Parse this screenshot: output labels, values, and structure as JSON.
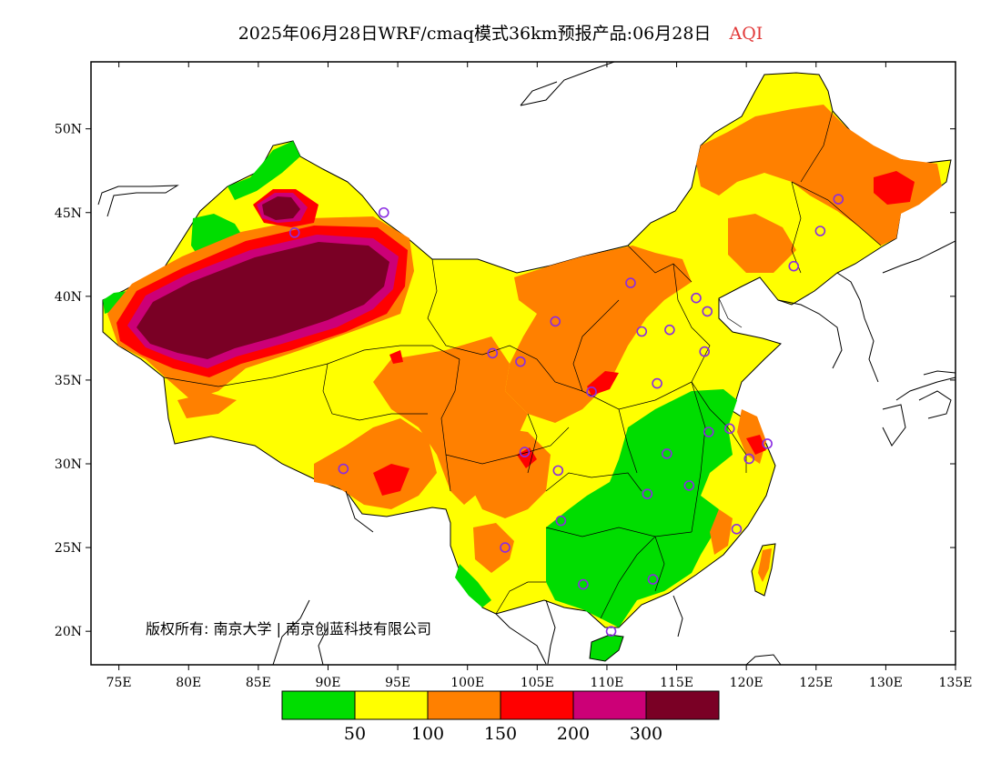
{
  "title": {
    "main": "2025年06月28日WRF/cmaq模式36km预报产品:06月28日",
    "variable": "AQI",
    "variable_color": "#e23a3a"
  },
  "map": {
    "lon_range": [
      73,
      135
    ],
    "lat_range": [
      18,
      54
    ],
    "x_ticks": [
      {
        "value": 75,
        "label": "75E"
      },
      {
        "value": 80,
        "label": "80E"
      },
      {
        "value": 85,
        "label": "85E"
      },
      {
        "value": 90,
        "label": "90E"
      },
      {
        "value": 95,
        "label": "95E"
      },
      {
        "value": 100,
        "label": "100E"
      },
      {
        "value": 105,
        "label": "105E"
      },
      {
        "value": 110,
        "label": "110E"
      },
      {
        "value": 115,
        "label": "115E"
      },
      {
        "value": 120,
        "label": "120E"
      },
      {
        "value": 125,
        "label": "125E"
      },
      {
        "value": 130,
        "label": "130E"
      },
      {
        "value": 135,
        "label": "135E"
      }
    ],
    "y_ticks": [
      {
        "value": 20,
        "label": "20N"
      },
      {
        "value": 25,
        "label": "25N"
      },
      {
        "value": 30,
        "label": "30N"
      },
      {
        "value": 35,
        "label": "35N"
      },
      {
        "value": 40,
        "label": "40N"
      },
      {
        "value": 45,
        "label": "45N"
      },
      {
        "value": 50,
        "label": "50N"
      }
    ],
    "copyright": "版权所有: 南京大学 | 南京创蓝科技有限公司",
    "station_marker_color": "#8a2be2",
    "stations": [
      {
        "lon": 126.6,
        "lat": 45.8
      },
      {
        "lon": 125.3,
        "lat": 43.9
      },
      {
        "lon": 123.4,
        "lat": 41.8
      },
      {
        "lon": 116.4,
        "lat": 39.9
      },
      {
        "lon": 117.2,
        "lat": 39.1
      },
      {
        "lon": 111.7,
        "lat": 40.8
      },
      {
        "lon": 114.5,
        "lat": 38.0
      },
      {
        "lon": 112.5,
        "lat": 37.9
      },
      {
        "lon": 117.0,
        "lat": 36.7
      },
      {
        "lon": 113.6,
        "lat": 34.8
      },
      {
        "lon": 106.3,
        "lat": 38.5
      },
      {
        "lon": 101.8,
        "lat": 36.6
      },
      {
        "lon": 103.8,
        "lat": 36.1
      },
      {
        "lon": 108.9,
        "lat": 34.3
      },
      {
        "lon": 87.6,
        "lat": 43.8
      },
      {
        "lon": 91.1,
        "lat": 29.7
      },
      {
        "lon": 104.1,
        "lat": 30.7
      },
      {
        "lon": 106.5,
        "lat": 29.6
      },
      {
        "lon": 106.7,
        "lat": 26.6
      },
      {
        "lon": 102.7,
        "lat": 25.0
      },
      {
        "lon": 108.3,
        "lat": 22.8
      },
      {
        "lon": 113.3,
        "lat": 23.1
      },
      {
        "lon": 110.3,
        "lat": 20.0
      },
      {
        "lon": 114.3,
        "lat": 30.6
      },
      {
        "lon": 112.9,
        "lat": 28.2
      },
      {
        "lon": 115.9,
        "lat": 28.7
      },
      {
        "lon": 119.3,
        "lat": 26.1
      },
      {
        "lon": 117.3,
        "lat": 31.9
      },
      {
        "lon": 118.8,
        "lat": 32.1
      },
      {
        "lon": 120.2,
        "lat": 30.3
      },
      {
        "lon": 121.5,
        "lat": 31.2
      },
      {
        "lon": 94.0,
        "lat": 45.0
      }
    ]
  },
  "legend": {
    "colors": [
      "#00dd00",
      "#ffff00",
      "#ff8000",
      "#ff0000",
      "#cc0077",
      "#7a0025"
    ],
    "labels": [
      "50",
      "100",
      "150",
      "200",
      "300"
    ],
    "categories": [
      "0-50",
      "50-100",
      "100-150",
      "150-200",
      "200-300",
      ">300"
    ]
  }
}
